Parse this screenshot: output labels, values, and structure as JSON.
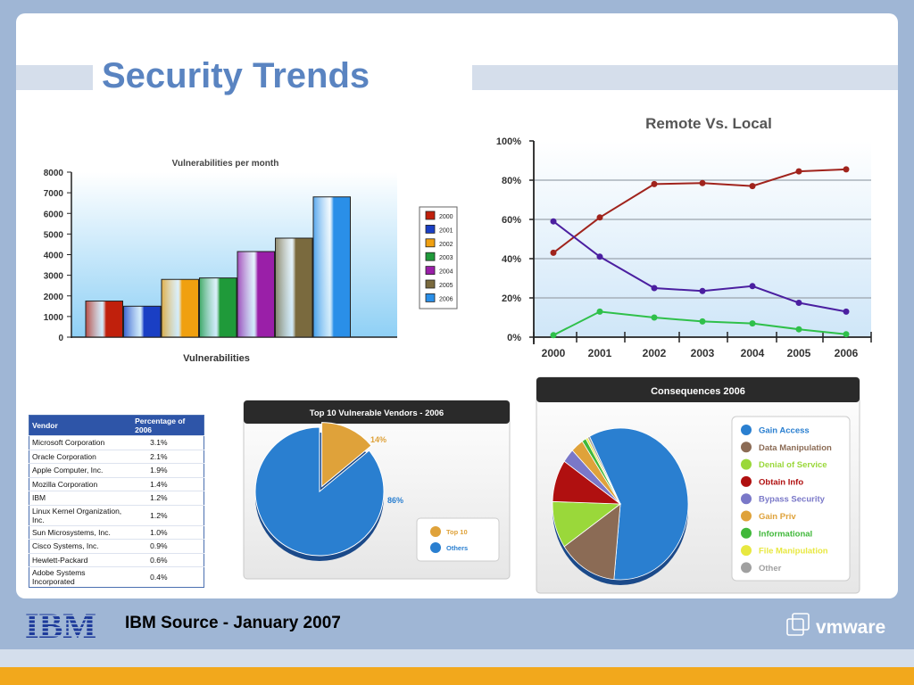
{
  "slide": {
    "title": "Security Trends",
    "footer": "IBM Source  - January 2007",
    "ibm_logo_text": "IBM",
    "vmware_logo_text": "vmware"
  },
  "colors": {
    "title": "#5a84c1",
    "background": "#9fb6d5",
    "orange": "#f2a81c"
  },
  "vendors_table": {
    "headers": [
      "Vendor",
      "Percentage of 2006"
    ],
    "rows": [
      [
        "Microsoft Corporation",
        "3.1%"
      ],
      [
        "Oracle Corporation",
        "2.1%"
      ],
      [
        "Apple Computer, Inc.",
        "1.9%"
      ],
      [
        "Mozilla Corporation",
        "1.4%"
      ],
      [
        "IBM",
        "1.2%"
      ],
      [
        "Linux Kernel Organization, Inc.",
        "1.2%"
      ],
      [
        "Sun Microsystems, Inc.",
        "1.0%"
      ],
      [
        "Cisco Systems, Inc.",
        "0.9%"
      ],
      [
        "Hewlett-Packard",
        "0.6%"
      ],
      [
        "Adobe Systems Incorporated",
        "0.4%"
      ]
    ]
  },
  "chart_data": [
    {
      "type": "bar",
      "title": "Vulnerabilities per month",
      "xlabel": "Vulnerabilities",
      "ylabel": "",
      "categories": [
        "2000",
        "2001",
        "2002",
        "2003",
        "2004",
        "2005",
        "2006"
      ],
      "values": [
        1750,
        1500,
        2800,
        2870,
        4150,
        4800,
        6800
      ],
      "colors": [
        "#c0200c",
        "#1a3fc4",
        "#f0a010",
        "#1f9a3a",
        "#9a1fa8",
        "#7a6a3e",
        "#2a8fe8"
      ],
      "ylim": [
        0,
        8000
      ],
      "yticks": [
        "0",
        "1000",
        "2000",
        "3000",
        "4000",
        "5000",
        "6000",
        "7000",
        "8000"
      ],
      "legend": [
        "2000",
        "2001",
        "2002",
        "2003",
        "2004",
        "2005",
        "2006"
      ],
      "legend_position": "right"
    },
    {
      "type": "line",
      "title": "Remote Vs. Local",
      "x": [
        "2000",
        "2001",
        "2002",
        "2003",
        "2004",
        "2005",
        "2006"
      ],
      "ylim": [
        0,
        100
      ],
      "yticks": [
        "0%",
        "20%",
        "40%",
        "60%",
        "80%",
        "100%"
      ],
      "grid": true,
      "series": [
        {
          "color": "#a0231c",
          "values": [
            43,
            61,
            78,
            78.5,
            77,
            84.5,
            85.5
          ]
        },
        {
          "color": "#4b1fa0",
          "values": [
            59,
            41,
            25,
            23.5,
            26,
            17.5,
            13
          ]
        },
        {
          "color": "#2fc04a",
          "values": [
            1,
            13,
            10,
            8,
            7,
            4,
            1.5
          ]
        }
      ]
    },
    {
      "type": "pie",
      "title": "Top 10 Vulnerable Vendors - 2006",
      "labels": [
        "Top 10",
        "Others"
      ],
      "values": [
        14,
        86
      ],
      "value_labels": [
        "14%",
        "86%"
      ],
      "colors": [
        "#dfa23a",
        "#2a7fd0"
      ],
      "legend_position": "right"
    },
    {
      "type": "pie",
      "title": "Consequences 2006",
      "labels": [
        "Gain Access",
        "Data Manipulation",
        "Denial of Service",
        "Obtain Info",
        "Bypass Security",
        "Gain Priv",
        "Informational",
        "File Manipulation",
        "Other"
      ],
      "values": [
        59,
        14,
        10,
        9,
        3,
        3,
        1,
        0.5,
        0.5
      ],
      "colors": [
        "#2a7fd0",
        "#8b6b55",
        "#9ad83a",
        "#b01010",
        "#7a78c8",
        "#dfa23a",
        "#40b83a",
        "#e8e840",
        "#a0a0a0"
      ],
      "legend_position": "right"
    }
  ]
}
